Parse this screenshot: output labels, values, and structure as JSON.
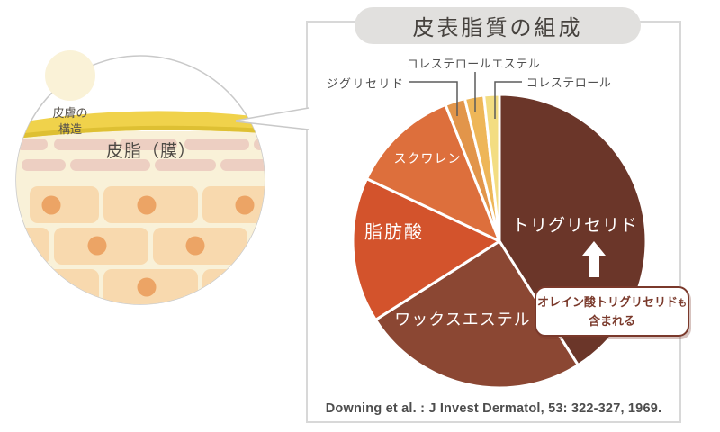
{
  "illustration": {
    "badge_line1": "皮膚の",
    "badge_line2": "構造",
    "sebum_label": "皮脂（膜）"
  },
  "panel": {
    "title": "皮表脂質の組成",
    "callout": {
      "line1": "オレイン酸トリグリセリド",
      "line1_small": "も",
      "line2": "含まれる"
    }
  },
  "chart_data": {
    "type": "pie",
    "title": "皮表脂質の組成",
    "source": "Downing et al. : J Invest Dermatol, 53: 322-327, 1969.",
    "direction": "clockwise",
    "start_angle_deg": 0,
    "values_note": "percentages not printed in figure; estimated from slice angles",
    "slices": [
      {
        "id": "triglyceride",
        "label": "トリグリセリド",
        "value": 41,
        "color": "#6B3629"
      },
      {
        "id": "wax-ester",
        "label": "ワックスエステル",
        "value": 25,
        "color": "#8B4733"
      },
      {
        "id": "fatty-acid",
        "label": "脂肪酸",
        "value": 16,
        "color": "#D3532C"
      },
      {
        "id": "squalene",
        "label": "スクワレン",
        "value": 12,
        "color": "#DD6F3C"
      },
      {
        "id": "diglyceride",
        "label": "ジグリセリド",
        "value": 2.2,
        "color": "#E2954A"
      },
      {
        "id": "cholesterol-ester",
        "label": "コレステロールエステル",
        "value": 2.1,
        "color": "#EEB658"
      },
      {
        "id": "cholesterol",
        "label": "コレステロール",
        "value": 1.7,
        "color": "#F3DD82"
      }
    ],
    "annotation": "オレイン酸トリグリセリドも含まれる"
  },
  "colors": {
    "panel_border": "#D8D8D8",
    "title_pill_bg": "#E1E0DE",
    "sebum_yellow": "#F0D24B",
    "callout_brown": "#7A392B",
    "leader_line_gray": "#5B5B5B"
  }
}
